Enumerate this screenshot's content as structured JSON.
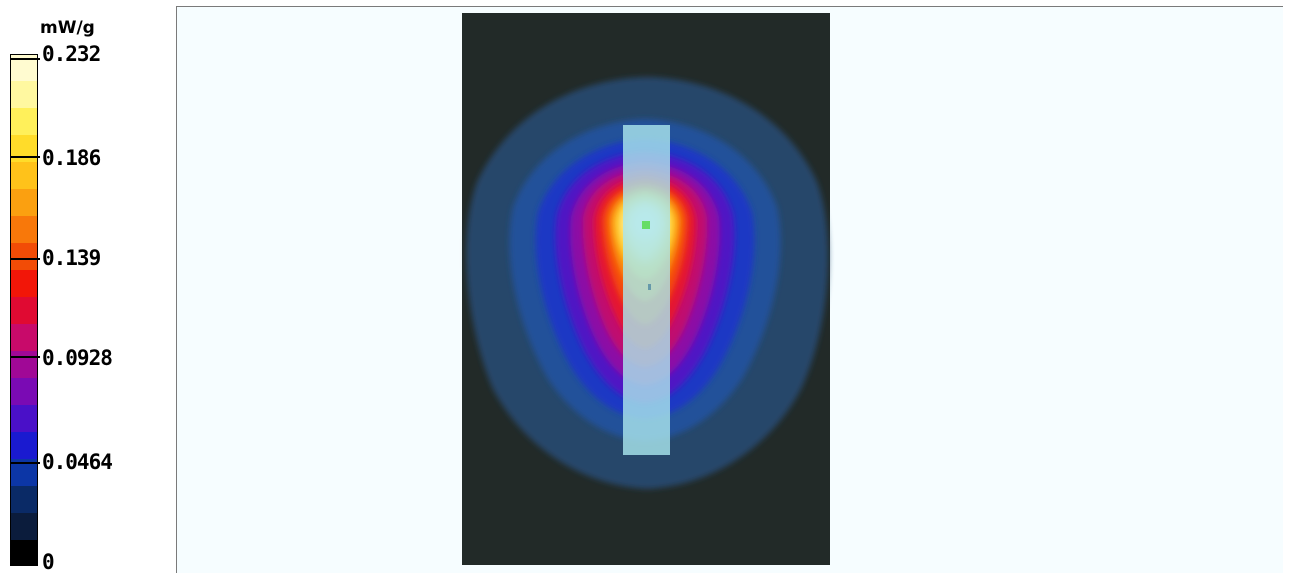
{
  "colorbar": {
    "unit": "mW/g",
    "ticks": [
      {
        "label": "0.232",
        "value": 0.232
      },
      {
        "label": "0.186",
        "value": 0.186
      },
      {
        "label": "0.139",
        "value": 0.139
      },
      {
        "label": "0.0928",
        "value": 0.0928
      },
      {
        "label": "0.0464",
        "value": 0.0464
      },
      {
        "label": "0",
        "value": 0
      }
    ],
    "max": 0.232,
    "colors": [
      "#000000",
      "#0b1c3c",
      "#0a2a66",
      "#0c36a6",
      "#1a1ad0",
      "#4a10c8",
      "#7a0ab4",
      "#a00896",
      "#c80a6a",
      "#e00a32",
      "#f21608",
      "#f24c06",
      "#f8780a",
      "#fba010",
      "#ffc21a",
      "#ffdc2a",
      "#fff05a",
      "#fff8a0",
      "#fffbd0"
    ]
  },
  "map": {
    "background_color": "#f6fdff",
    "phantom_color": "#222a28",
    "device_color": "#a8e4ec",
    "peak_marker_color": "#66dd66",
    "reference_marker_color": "#6699aa"
  }
}
